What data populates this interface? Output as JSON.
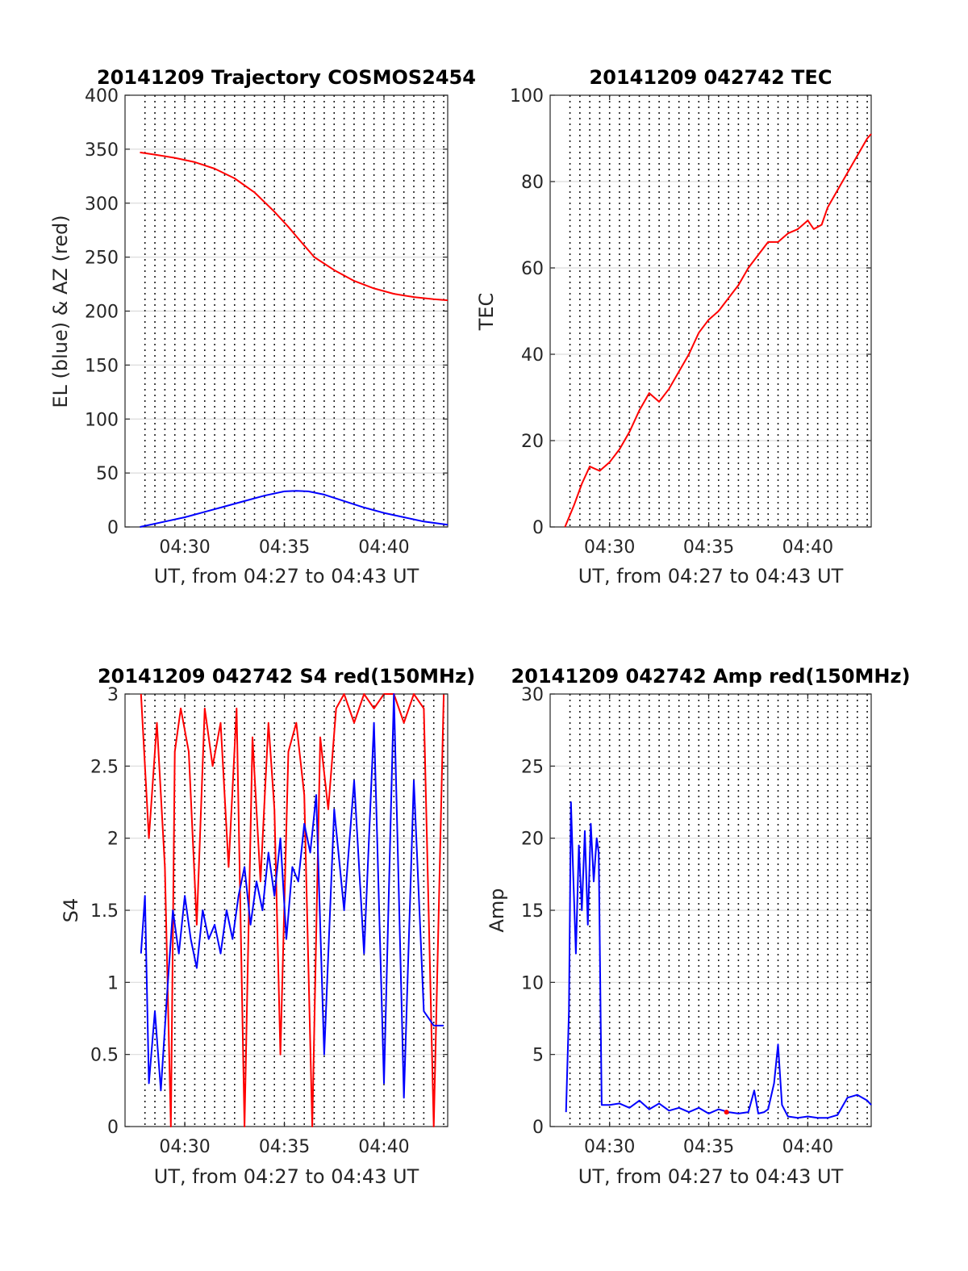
{
  "figure": {
    "time_range_label": "UT, from 04:27 to 04:43 UT",
    "x_ticks": [
      "04:30",
      "04:35",
      "04:40"
    ]
  },
  "chart_data": [
    {
      "type": "line",
      "title": "20141209 Trajectory COSMOS2454",
      "xlabel": "UT, from 04:27 to 04:43 UT",
      "ylabel": "EL (blue) & AZ (red)",
      "xlim": [
        27.0,
        43.2
      ],
      "ylim": [
        0,
        400
      ],
      "x_tick_values": [
        30,
        35,
        40
      ],
      "x_tick_labels": [
        "04:30",
        "04:35",
        "04:40"
      ],
      "y_ticks": [
        0,
        50,
        100,
        150,
        200,
        250,
        300,
        350,
        400
      ],
      "grid": "dotted vertical every 0.5 min, light horizontal at y ticks",
      "series": [
        {
          "color": "#ff0000",
          "x": [
            27.75,
            28.5,
            29.5,
            30.5,
            31.5,
            32.5,
            33.5,
            34.5,
            35.2,
            35.8,
            36.5,
            37.5,
            38.5,
            39.5,
            40.5,
            41.5,
            42.5,
            43.2
          ],
          "y": [
            347,
            345,
            342,
            338,
            332,
            323,
            310,
            292,
            278,
            265,
            250,
            238,
            228,
            221,
            216,
            213,
            211,
            210
          ]
        },
        {
          "color": "#0000ff",
          "x": [
            27.75,
            29,
            30,
            31,
            32,
            33,
            34,
            35,
            35.6,
            36.2,
            37,
            38,
            39,
            40,
            41,
            42,
            43.2
          ],
          "y": [
            0,
            5,
            9,
            14,
            19,
            24,
            29,
            33,
            33.5,
            33,
            30,
            24,
            18,
            13,
            9,
            5,
            2
          ]
        }
      ]
    },
    {
      "type": "line",
      "title": "20141209 042742 TEC",
      "xlabel": "UT, from 04:27 to 04:43 UT",
      "ylabel": "TEC",
      "xlim": [
        27.0,
        43.2
      ],
      "ylim": [
        0,
        100
      ],
      "x_tick_values": [
        30,
        35,
        40
      ],
      "x_tick_labels": [
        "04:30",
        "04:35",
        "04:40"
      ],
      "y_ticks": [
        0,
        20,
        40,
        60,
        80,
        100
      ],
      "grid": "dotted vertical every 0.5 min, light horizontal at y ticks",
      "series": [
        {
          "color": "#ff0000",
          "x": [
            27.75,
            28.2,
            28.6,
            29.0,
            29.5,
            30.0,
            30.5,
            31.0,
            31.5,
            32.0,
            32.5,
            33.0,
            33.5,
            34.0,
            34.5,
            35.0,
            35.5,
            36.0,
            36.5,
            37.0,
            37.5,
            38.0,
            38.5,
            39.0,
            39.5,
            40.0,
            40.3,
            40.7,
            41.0,
            41.5,
            42.0,
            42.5,
            43.0,
            43.2
          ],
          "y": [
            0,
            5,
            10,
            14,
            13,
            15,
            18,
            22,
            27,
            31,
            29,
            32,
            36,
            40,
            45,
            48,
            50,
            53,
            56,
            60,
            63,
            66,
            66,
            68,
            69,
            71,
            69,
            70,
            74,
            78,
            82,
            86,
            90,
            91
          ]
        }
      ]
    },
    {
      "type": "line",
      "title": "20141209 042742 S4 red(150MHz)",
      "xlabel": "UT, from 04:27 to 04:43 UT",
      "ylabel": "S4",
      "xlim": [
        27.0,
        43.2
      ],
      "ylim": [
        0,
        3
      ],
      "x_tick_values": [
        30,
        35,
        40
      ],
      "x_tick_labels": [
        "04:30",
        "04:35",
        "04:40"
      ],
      "y_ticks": [
        0,
        0.5,
        1,
        1.5,
        2,
        2.5,
        3
      ],
      "grid": "dotted vertical every 0.5 min, light horizontal at y ticks",
      "series": [
        {
          "color": "#ff0000",
          "x": [
            27.8,
            28.2,
            28.6,
            29.0,
            29.3,
            29.5,
            29.8,
            30.2,
            30.6,
            31.0,
            31.4,
            31.8,
            32.2,
            32.6,
            33.0,
            33.4,
            33.8,
            34.2,
            34.5,
            34.8,
            35.2,
            35.6,
            36.0,
            36.4,
            36.8,
            37.2,
            37.6,
            38.0,
            38.5,
            39.0,
            39.5,
            40.0,
            40.5,
            41.0,
            41.5,
            42.0,
            42.5,
            43.0
          ],
          "y": [
            3.0,
            2.0,
            2.8,
            1.8,
            0.0,
            2.6,
            2.9,
            2.6,
            1.4,
            2.9,
            2.5,
            2.8,
            1.8,
            2.9,
            0.0,
            2.7,
            1.7,
            2.8,
            2.2,
            0.5,
            2.6,
            2.8,
            2.3,
            0.0,
            2.7,
            2.2,
            2.9,
            3.0,
            2.8,
            3.0,
            2.9,
            3.0,
            3.0,
            2.8,
            3.0,
            2.9,
            0.0,
            3.0
          ]
        },
        {
          "color": "#0000ff",
          "x": [
            27.8,
            28.0,
            28.2,
            28.5,
            28.8,
            29.1,
            29.4,
            29.7,
            30.0,
            30.3,
            30.6,
            30.9,
            31.2,
            31.5,
            31.8,
            32.1,
            32.4,
            32.7,
            33.0,
            33.3,
            33.6,
            33.9,
            34.2,
            34.5,
            34.8,
            35.1,
            35.4,
            35.7,
            36.0,
            36.3,
            36.6,
            37.0,
            37.5,
            38.0,
            38.5,
            39.0,
            39.5,
            40.0,
            40.5,
            41.0,
            41.5,
            42.0,
            42.5,
            43.0
          ],
          "y": [
            1.2,
            1.6,
            0.3,
            0.8,
            0.25,
            0.9,
            1.5,
            1.2,
            1.6,
            1.3,
            1.1,
            1.5,
            1.3,
            1.4,
            1.2,
            1.5,
            1.3,
            1.6,
            1.8,
            1.4,
            1.7,
            1.5,
            1.9,
            1.6,
            2.0,
            1.3,
            1.8,
            1.7,
            2.1,
            1.9,
            2.3,
            0.5,
            2.2,
            1.5,
            2.4,
            1.2,
            2.8,
            0.3,
            3.0,
            0.2,
            2.4,
            0.8,
            0.7,
            0.7
          ]
        }
      ]
    },
    {
      "type": "line",
      "title": "20141209 042742 Amp red(150MHz)",
      "xlabel": "UT, from 04:27 to 04:43 UT",
      "ylabel": "Amp",
      "xlim": [
        27.0,
        43.2
      ],
      "ylim": [
        0,
        30
      ],
      "x_tick_values": [
        30,
        35,
        40
      ],
      "x_tick_labels": [
        "04:30",
        "04:35",
        "04:40"
      ],
      "y_ticks": [
        0,
        5,
        10,
        15,
        20,
        25,
        30
      ],
      "grid": "dotted vertical every 0.5 min, light horizontal at y ticks",
      "series": [
        {
          "color": "#0000ff",
          "x": [
            27.8,
            27.95,
            28.05,
            28.15,
            28.3,
            28.45,
            28.6,
            28.75,
            28.9,
            29.05,
            29.2,
            29.35,
            29.45,
            29.6,
            30.0,
            30.5,
            31.0,
            31.5,
            32.0,
            32.5,
            33.0,
            33.5,
            34.0,
            34.5,
            35.0,
            35.5,
            36.0,
            36.5,
            37.0,
            37.3,
            37.5,
            37.8,
            38.0,
            38.3,
            38.5,
            38.7,
            39.0,
            39.5,
            40.0,
            40.5,
            41.0,
            41.5,
            42.0,
            42.5,
            43.0,
            43.2
          ],
          "y": [
            1.0,
            8.0,
            22.5,
            18.0,
            12.0,
            19.5,
            15.0,
            20.5,
            14.0,
            21.0,
            17.0,
            20.0,
            19.0,
            1.5,
            1.5,
            1.6,
            1.3,
            1.8,
            1.2,
            1.6,
            1.1,
            1.3,
            1.0,
            1.3,
            0.9,
            1.2,
            1.0,
            0.9,
            1.0,
            2.5,
            0.9,
            1.0,
            1.2,
            3.0,
            5.7,
            1.5,
            0.7,
            0.6,
            0.7,
            0.6,
            0.6,
            0.8,
            2.0,
            2.2,
            1.8,
            1.5
          ]
        },
        {
          "color": "#ff0000",
          "x": [
            35.9
          ],
          "y": [
            1.0
          ]
        }
      ]
    }
  ]
}
